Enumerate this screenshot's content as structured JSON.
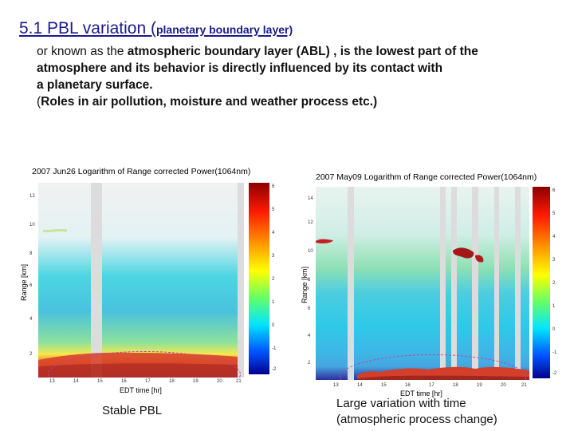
{
  "heading": {
    "main": "5.1 PBL variation (",
    "sub": "planetary boundary layer)"
  },
  "description": {
    "line1_pre": "or known as the ",
    "line1_bold": "atmospheric boundary layer (ABL) , is the lowest part of the",
    "line2": "atmosphere and its behavior is directly influenced by its contact with",
    "line3": "a planetary surface.",
    "line4_pre": "(",
    "line4_bold": "Roles in air pollution, moisture and weather process etc.)"
  },
  "left_plot": {
    "title": "2007 Jun26  Logarithm of Range corrected Power(1064nm)",
    "ylabel": "Range [km]",
    "xlabel": "EDT time [hr]",
    "yticks": [
      "12",
      "10",
      "8",
      "6",
      "4",
      "2"
    ],
    "xticks": [
      "13",
      "14",
      "15",
      "16",
      "17",
      "18",
      "19",
      "20",
      "21"
    ],
    "cbar_ticks": [
      "6",
      "5",
      "4",
      "3",
      "2",
      "1",
      "0",
      "-1",
      "-2"
    ]
  },
  "right_plot": {
    "title": "2007 May09  Logarithm of Range corrected Power(1064nm)",
    "ylabel": "Range [km]",
    "xlabel": "EDT time [hr]",
    "yticks": [
      "14",
      "12",
      "10",
      "8",
      "6",
      "4",
      "2"
    ],
    "xticks": [
      "13",
      "14",
      "15",
      "16",
      "17",
      "18",
      "19",
      "20",
      "21"
    ],
    "cbar_ticks": [
      "6",
      "5",
      "4",
      "3",
      "2",
      "1",
      "0",
      "-1",
      "-2"
    ]
  },
  "captions": {
    "left": "Stable PBL",
    "right_line1": "Large variation with time",
    "right_line2": "(atmospheric process change)"
  },
  "colors": {
    "heading": "#1a1a8c",
    "ellipse": "#c23fa0"
  }
}
